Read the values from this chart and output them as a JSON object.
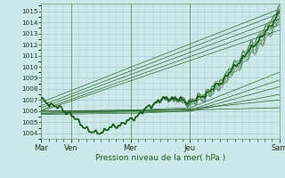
{
  "xlabel": "Pression niveau de la mer( hPa )",
  "background_color": "#cce8e8",
  "grid_color": "#aacccc",
  "line_color": "#1a5c1a",
  "ylim": [
    1003.5,
    1015.7
  ],
  "xlim": [
    0,
    96
  ],
  "xtick_positions": [
    0,
    12,
    36,
    60,
    96
  ],
  "xtick_labels": [
    "Mar",
    "Ven",
    "Mer",
    "Jeu",
    "Sam"
  ],
  "ytick_positions": [
    1004,
    1005,
    1006,
    1007,
    1008,
    1009,
    1010,
    1011,
    1012,
    1013,
    1014,
    1015
  ],
  "num_hours": 96
}
